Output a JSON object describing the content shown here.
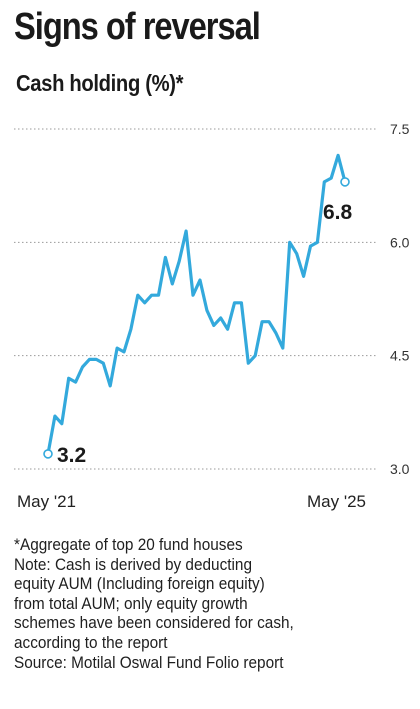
{
  "header": {
    "title": "Signs of reversal",
    "subtitle": "Cash holding (%)*"
  },
  "colors": {
    "line": "#33a9dc",
    "grid": "#9a9a9a",
    "text": "#1a1a1a"
  },
  "chart_data": {
    "type": "line",
    "title": "Signs of reversal",
    "subtitle": "Cash holding (%)*",
    "xlabel": "",
    "ylabel": "",
    "ylim": [
      3.0,
      7.5
    ],
    "yticks": [
      "7.5",
      "6.0",
      "4.5",
      "3.0"
    ],
    "xtick_labels": [
      "May '21",
      "May '25"
    ],
    "grid": "horizontal dotted",
    "annotations": {
      "start": "3.2",
      "end": "6.8"
    },
    "series": [
      {
        "values": [
          3.2,
          3.7,
          3.6,
          4.2,
          4.15,
          4.35,
          4.45,
          4.45,
          4.4,
          4.1,
          4.6,
          4.55,
          4.85,
          5.3,
          5.2,
          5.3,
          5.3,
          5.8,
          5.45,
          5.75,
          6.15,
          5.3,
          5.5,
          5.1,
          4.9,
          5.0,
          4.85,
          5.2,
          5.2,
          4.4,
          4.5,
          4.95,
          4.95,
          4.8,
          4.6,
          6.0,
          5.85,
          5.55,
          5.95,
          6.0,
          6.8,
          6.85,
          7.15,
          6.8
        ]
      }
    ]
  },
  "notes": {
    "line1": "*Aggregate of top 20 fund houses",
    "line2": "Note: Cash is derived by deducting",
    "line3": "equity AUM (Including foreign equity)",
    "line4": "from total AUM; only equity growth",
    "line5": "schemes have been considered for cash,",
    "line6": "according to the report",
    "line7": "Source: Motilal Oswal Fund Folio report"
  }
}
